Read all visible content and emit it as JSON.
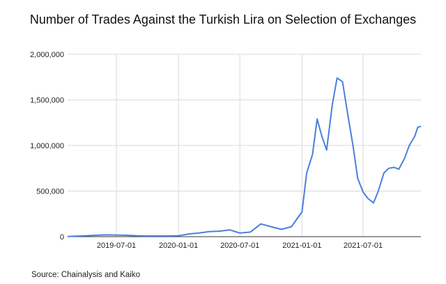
{
  "title": "Number of Trades Against the Turkish Lira on Selection of Exchanges",
  "source": "Source: Chainalysis and Kaiko",
  "colors": {
    "line": "#4a7fdb",
    "grid": "#d9d9d9",
    "axis": "#333333"
  },
  "chart_data": {
    "type": "line",
    "title": "Number of Trades Against the Turkish Lira on Selection of Exchanges",
    "xlabel": "",
    "ylabel": "",
    "ylim": [
      0,
      2000000
    ],
    "yticks": [
      0,
      500000,
      1000000,
      1500000,
      2000000
    ],
    "ytick_labels": [
      "0",
      "500,000",
      "1,000,000",
      "1,500,000",
      "2,000,000"
    ],
    "xticks": [
      "2019-07-01",
      "2020-01-01",
      "2020-07-01",
      "2021-01-01",
      "2021-07-01"
    ],
    "grid": true,
    "legend": false,
    "series": [
      {
        "name": "Number of Trades",
        "x": [
          "2019-02-01",
          "2019-03-01",
          "2019-04-01",
          "2019-05-01",
          "2019-06-01",
          "2019-07-01",
          "2019-08-01",
          "2019-09-01",
          "2019-10-01",
          "2019-11-01",
          "2019-12-01",
          "2020-01-01",
          "2020-02-01",
          "2020-03-01",
          "2020-04-01",
          "2020-05-01",
          "2020-06-01",
          "2020-07-01",
          "2020-08-01",
          "2020-09-01",
          "2020-10-01",
          "2020-11-01",
          "2020-12-01",
          "2020-12-20",
          "2021-01-01",
          "2021-01-15",
          "2021-02-01",
          "2021-02-15",
          "2021-03-01",
          "2021-03-15",
          "2021-04-01",
          "2021-04-15",
          "2021-05-01",
          "2021-05-15",
          "2021-06-01",
          "2021-06-15",
          "2021-07-01",
          "2021-07-15",
          "2021-08-01",
          "2021-08-15",
          "2021-09-01",
          "2021-09-15",
          "2021-10-01",
          "2021-10-15",
          "2021-11-01",
          "2021-11-15",
          "2021-12-01",
          "2021-12-10",
          "2021-12-20"
        ],
        "values": [
          2000,
          5000,
          10000,
          15000,
          20000,
          18000,
          15000,
          10000,
          8000,
          8000,
          8000,
          10000,
          30000,
          40000,
          55000,
          60000,
          75000,
          40000,
          50000,
          140000,
          110000,
          80000,
          110000,
          210000,
          270000,
          700000,
          900000,
          1290000,
          1100000,
          950000,
          1450000,
          1740000,
          1700000,
          1380000,
          1000000,
          640000,
          490000,
          420000,
          370000,
          500000,
          700000,
          750000,
          760000,
          740000,
          860000,
          1000000,
          1100000,
          1200000,
          1210000
        ]
      }
    ]
  }
}
